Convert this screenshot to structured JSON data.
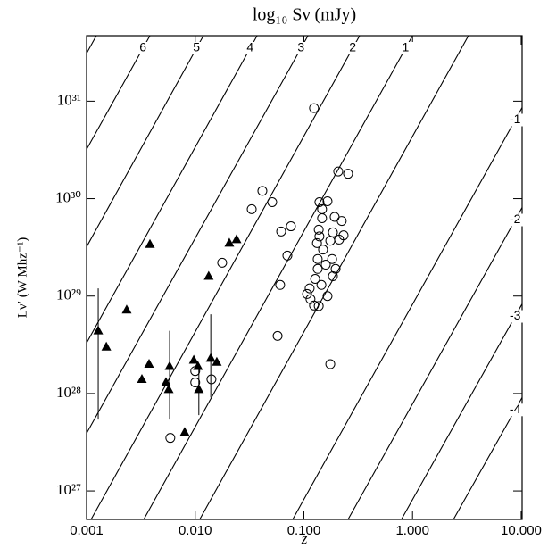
{
  "chart_data": {
    "type": "scatter",
    "title": "log₁₀ Sν (mJy)",
    "xlabel": "z",
    "ylabel": "Lν′ (W Mhz⁻¹)",
    "xscale": "log",
    "yscale": "log",
    "xlim": [
      0.001,
      10.2
    ],
    "ylim": [
      5.1e+26,
      4.7e+31
    ],
    "xticks": [
      0.001,
      {
        "value": 0.01,
        "label": "0.010"
      },
      {
        "value": 0.1,
        "label": "0.100"
      },
      {
        "value": 1,
        "label": "1.000"
      },
      {
        "value": 10,
        "label": "10.000"
      }
    ],
    "yticks": [
      {
        "value": 1e+27,
        "label": "10²⁷"
      },
      {
        "value": 1e+28,
        "label": "10²⁸"
      },
      {
        "value": 1e+29,
        "label": "10²⁹"
      },
      {
        "value": 1e+30,
        "label": "10³⁰"
      },
      {
        "value": 1e+31,
        "label": "10³¹"
      }
    ],
    "series": [
      {
        "marker": "triangle",
        "color": "#000000",
        "x": [
          0.00128,
          0.00152,
          0.00234,
          0.00323,
          0.00376,
          0.00383,
          0.00538,
          0.00581,
          0.0057,
          0.008,
          0.0097,
          0.0106,
          0.0108,
          0.0133,
          0.0139,
          0.0158,
          0.0206,
          0.024
        ],
        "y": [
          4.4e+28,
          3e+28,
          7.2e+28,
          1.4e+28,
          2e+28,
          3.4e+29,
          1.3e+28,
          1.9e+28,
          1.1e+28,
          4e+27,
          2.2e+28,
          1.9e+28,
          1.1e+28,
          1.6e+29,
          2.3e+28,
          2.1e+28,
          3.5e+29,
          3.8e+29
        ],
        "err_low": [
          5.4e+27,
          null,
          null,
          null,
          null,
          null,
          null,
          5.4e+27,
          null,
          null,
          null,
          null,
          6e+27,
          null,
          9.1e+27,
          null,
          null,
          null
        ],
        "err_high": [
          1.2e+29,
          null,
          null,
          null,
          null,
          null,
          null,
          4.4e+28,
          null,
          null,
          null,
          null,
          1.9e+28,
          null,
          6.5e+28,
          null,
          null,
          null
        ]
      },
      {
        "marker": "circle",
        "color": "#000000",
        "x": [
          0.0059,
          0.01,
          0.01,
          0.0141,
          0.0177,
          0.0331,
          0.0415,
          0.0511,
          0.0573,
          0.0605,
          0.0618,
          0.0705,
          0.076,
          0.124,
          0.175,
          0.207,
          0.255,
          0.165,
          0.147,
          0.137,
          0.132,
          0.134,
          0.134,
          0.127,
          0.113,
          0.107,
          0.115,
          0.124,
          0.137,
          0.139,
          0.15,
          0.159,
          0.175,
          0.185,
          0.165,
          0.145,
          0.185,
          0.211,
          0.232,
          0.192,
          0.223,
          0.182,
          0.196,
          0.139,
          0.147
        ],
        "y": [
          3.5e+27,
          1.7e+28,
          1.3e+28,
          1.4e+28,
          2.2e+29,
          7.8e+29,
          1.2e+30,
          9.2e+29,
          3.9e+28,
          1.3e+29,
          4.6e+29,
          2.6e+29,
          5.2e+29,
          8.5e+30,
          2e+28,
          1.9e+30,
          1.8e+30,
          9.4e+29,
          6.3e+29,
          4.8e+29,
          3.5e+29,
          2.4e+29,
          1.9e+29,
          1.5e+29,
          1.2e+29,
          1.05e+29,
          9.3e+28,
          8e+28,
          7.9e+28,
          4.1e+29,
          3e+29,
          2.1e+29,
          3.7e+29,
          1.6e+29,
          1e+29,
          1.3e+29,
          4.5e+29,
          3.8e+29,
          4.2e+29,
          6.5e+29,
          5.9e+29,
          2.4e+29,
          1.9e+29,
          9.2e+29,
          7.8e+29
        ]
      }
    ],
    "contours": [
      {
        "x": [
          0.00123,
          0.001
        ],
        "y": [
          4.7e+31,
          3.1e+31
        ]
      },
      {
        "level": 6,
        "x": [
          0.00383,
          0.001
        ],
        "y": [
          4.7e+31,
          3.2e+30
        ]
      },
      {
        "level": 5,
        "x": [
          0.0119,
          0.001
        ],
        "y": [
          4.7e+31,
          3.2e+29
        ]
      },
      {
        "level": 4,
        "x": [
          0.0371,
          0.001
        ],
        "y": [
          4.7e+31,
          3.3e+28
        ]
      },
      {
        "level": 3,
        "x": [
          0.109,
          0.001
        ],
        "y": [
          4.7e+31,
          3.9e+27
        ]
      },
      {
        "level": 2,
        "x": [
          0.326,
          0.0011
        ],
        "y": [
          4.7e+31,
          5.1e+26
        ]
      },
      {
        "level": 1,
        "x": [
          1.0,
          0.00336
        ],
        "y": [
          4.7e+31,
          5.1e+26
        ]
      },
      {
        "x": [
          3.27,
          0.011
        ],
        "y": [
          4.7e+31,
          5.1e+26
        ]
      },
      {
        "level": -1,
        "x": [
          10.2,
          0.0789
        ],
        "y": [
          8.6e+30,
          5.1e+26
        ]
      },
      {
        "level": -2,
        "x": [
          10.2,
          0.255
        ],
        "y": [
          8.1e+29,
          5.1e+26
        ]
      },
      {
        "level": -3,
        "x": [
          10.2,
          0.79
        ],
        "y": [
          8.3e+28,
          5.1e+26
        ]
      },
      {
        "level": -4,
        "x": [
          10.2,
          2.38
        ],
        "y": [
          9.1e+27,
          5.1e+26
        ]
      }
    ]
  }
}
